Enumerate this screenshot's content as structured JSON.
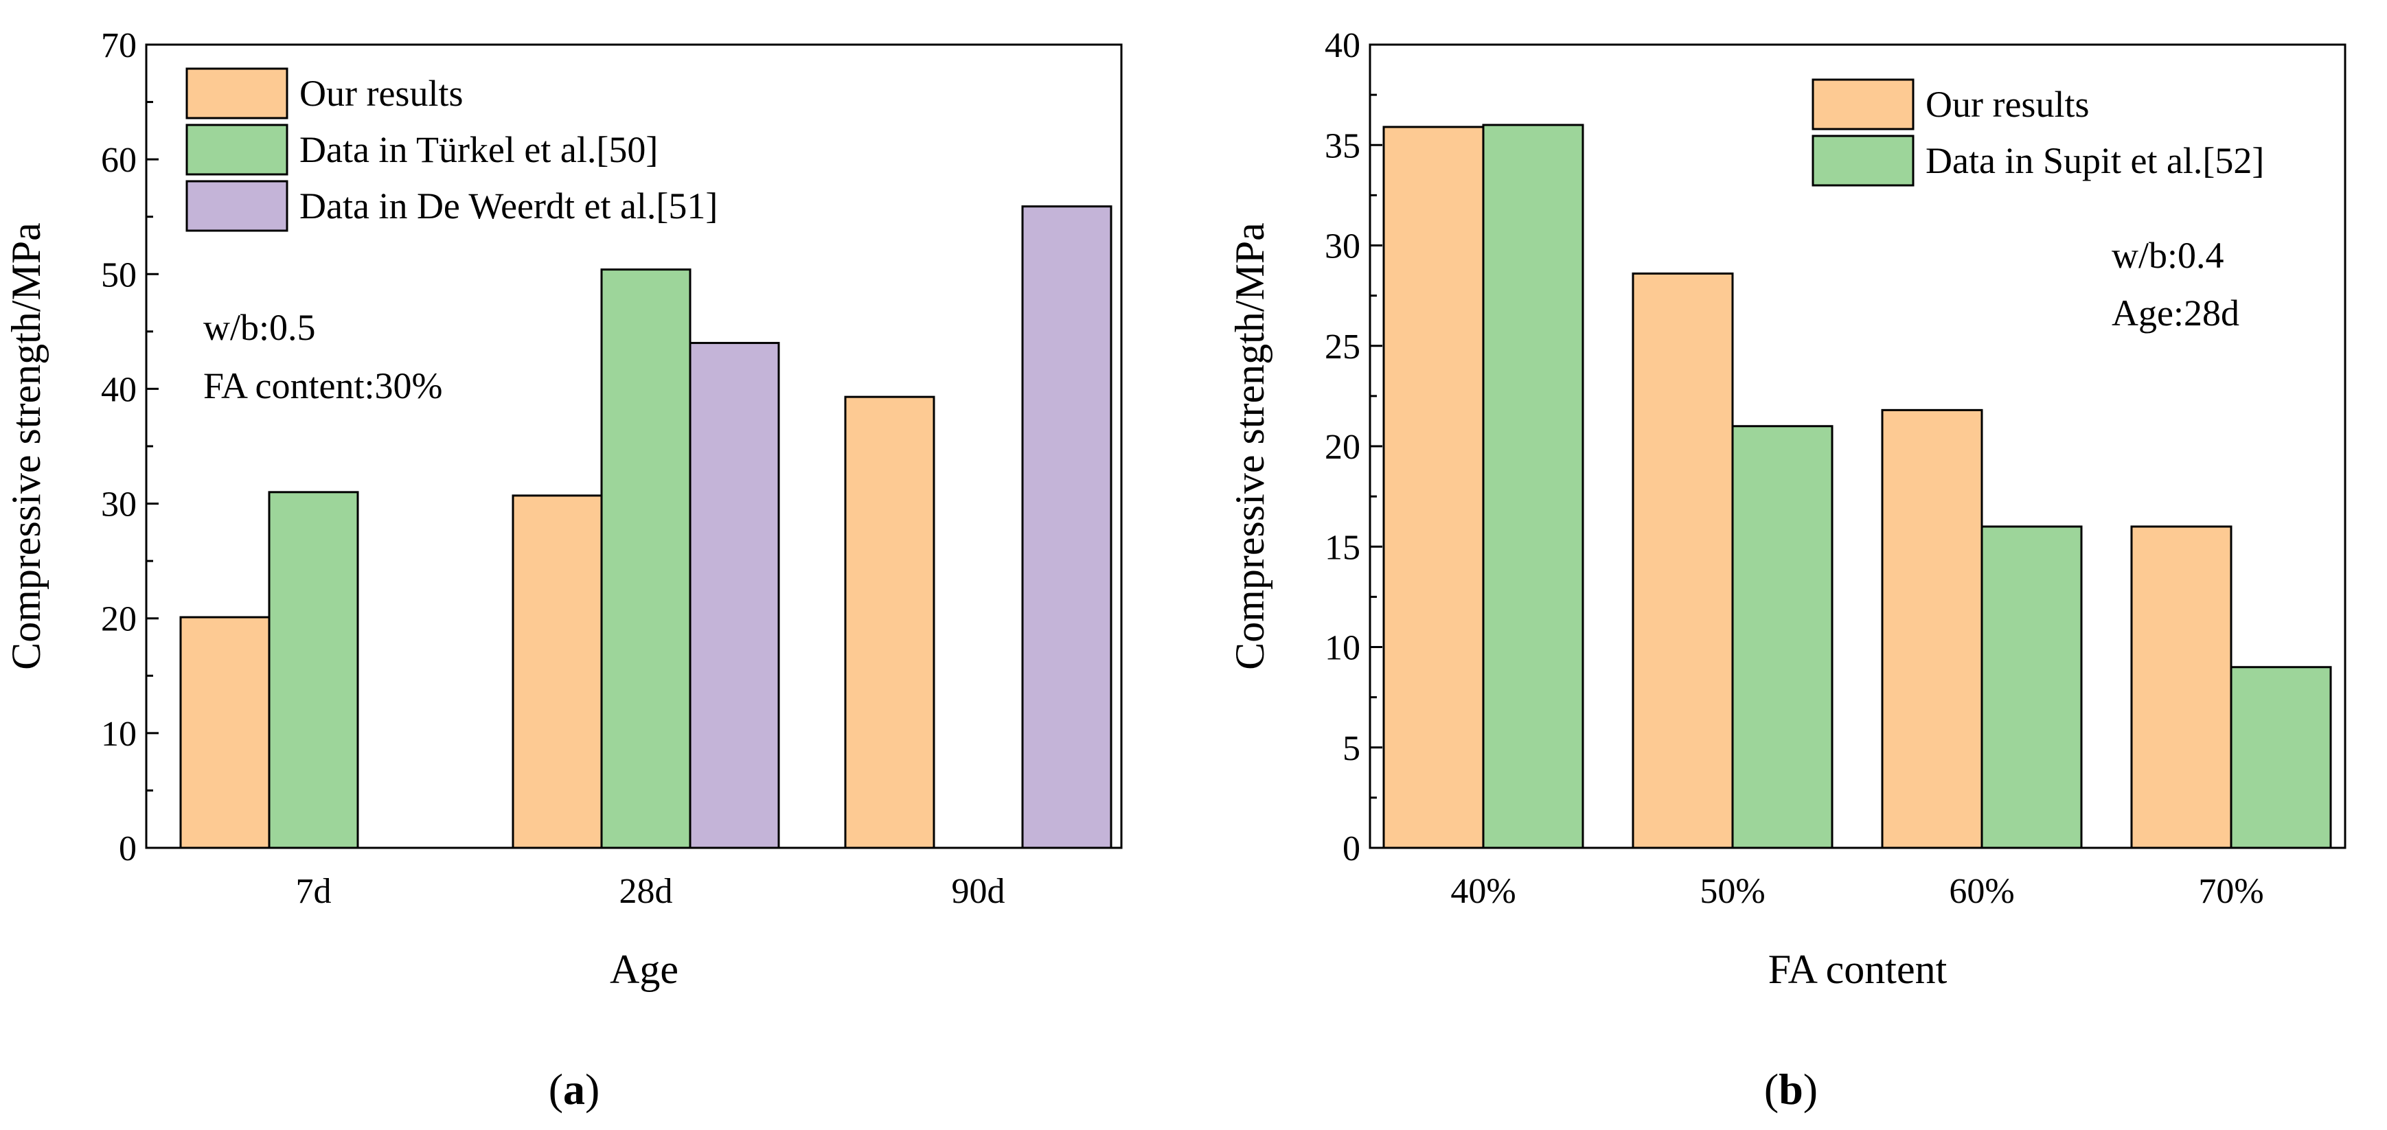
{
  "chart_data": [
    {
      "type": "bar",
      "panel": "a",
      "categories": [
        "7d",
        "28d",
        "90d"
      ],
      "series": [
        {
          "name": "Our results",
          "color": "#FDCA93",
          "values": [
            20.1,
            30.7,
            39.3
          ]
        },
        {
          "name": "Data in Türkel et al.[50]",
          "color": "#9DD59A",
          "values": [
            31.0,
            50.4,
            null
          ]
        },
        {
          "name": "Data in De Weerdt et al.[51]",
          "color": "#C4B4D8",
          "values": [
            null,
            44.0,
            55.9
          ]
        }
      ],
      "xlabel": "Age",
      "ylabel": "Compressive strength/MPa",
      "ylim": [
        0,
        70
      ],
      "yticks": [
        0,
        10,
        20,
        30,
        40,
        50,
        60,
        70
      ],
      "annotations": [
        "w/b:0.5",
        "FA content:30%"
      ],
      "legend_position": "top-left"
    },
    {
      "type": "bar",
      "panel": "b",
      "categories": [
        "40%",
        "50%",
        "60%",
        "70%"
      ],
      "series": [
        {
          "name": "Our results",
          "color": "#FDCA93",
          "values": [
            35.9,
            28.6,
            21.8,
            16.0
          ]
        },
        {
          "name": "Data in Supit et al.[52]",
          "color": "#9DD59A",
          "values": [
            36.0,
            21.0,
            16.0,
            9.0
          ]
        }
      ],
      "xlabel": "FA content",
      "ylabel": "Compressive strength/MPa",
      "ylim": [
        0,
        40
      ],
      "yticks": [
        0,
        5,
        10,
        15,
        20,
        25,
        30,
        35,
        40
      ],
      "annotations": [
        "w/b:0.4",
        "Age:28d"
      ],
      "legend_position": "top-right"
    }
  ],
  "panel_labels": {
    "open": "(",
    "a": "a",
    "b": "b",
    "close": ")"
  }
}
